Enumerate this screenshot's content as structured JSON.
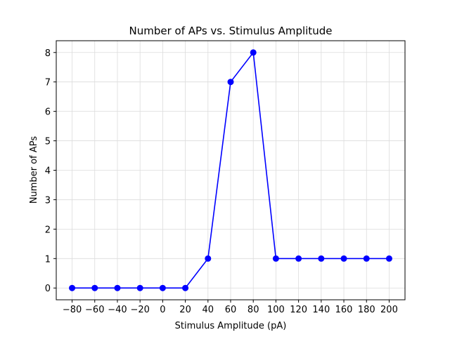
{
  "chart_data": {
    "type": "line",
    "title": "Number of APs vs. Stimulus Amplitude",
    "xlabel": "Stimulus Amplitude (pA)",
    "ylabel": "Number of APs",
    "x": [
      -80,
      -60,
      -40,
      -20,
      0,
      20,
      40,
      60,
      80,
      100,
      120,
      140,
      160,
      180,
      200
    ],
    "series": [
      {
        "values": [
          0,
          0,
          0,
          0,
          0,
          0,
          1,
          7,
          8,
          1,
          1,
          1,
          1,
          1,
          1
        ],
        "color": "#0000ff",
        "marker": "circle"
      }
    ],
    "xticks": [
      -80,
      -60,
      -40,
      -20,
      0,
      20,
      40,
      60,
      80,
      100,
      120,
      140,
      160,
      180,
      200
    ],
    "xtick_labels": [
      "−80",
      "−60",
      "−40",
      "−20",
      "0",
      "20",
      "40",
      "60",
      "80",
      "100",
      "120",
      "140",
      "160",
      "180",
      "200"
    ],
    "yticks": [
      0,
      1,
      2,
      3,
      4,
      5,
      6,
      7,
      8
    ],
    "ytick_labels": [
      "0",
      "1",
      "2",
      "3",
      "4",
      "5",
      "6",
      "7",
      "8"
    ],
    "xlim": [
      -94,
      214
    ],
    "ylim": [
      -0.4,
      8.4
    ],
    "grid": true,
    "legend": "none"
  }
}
